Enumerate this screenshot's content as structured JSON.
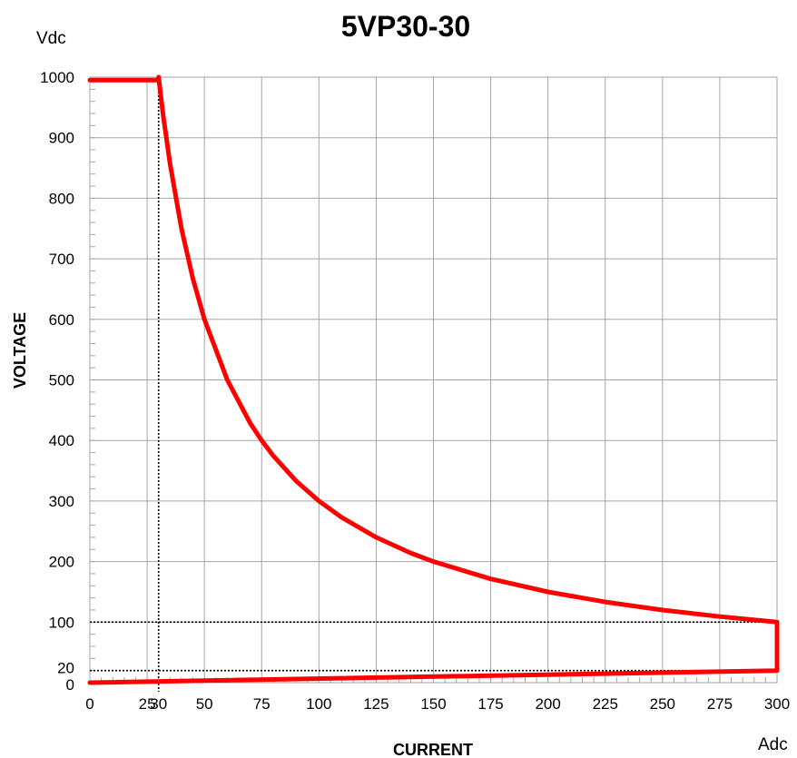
{
  "chart_data": {
    "type": "line",
    "title": "5VP30-30",
    "xlabel": "CURRENT",
    "ylabel": "VOLTAGE",
    "x_unit": "Adc",
    "y_unit": "Vdc",
    "xlim": [
      0,
      300
    ],
    "ylim": [
      0,
      1000
    ],
    "x_ticks": [
      0,
      25,
      30,
      50,
      75,
      100,
      125,
      150,
      175,
      200,
      225,
      250,
      275,
      300
    ],
    "y_ticks": [
      0,
      20,
      100,
      200,
      300,
      400,
      500,
      600,
      700,
      800,
      900,
      1000
    ],
    "grid": true,
    "series": [
      {
        "color": "#ff0000",
        "points": [
          [
            0,
            995
          ],
          [
            30,
            995
          ],
          [
            30,
            1000
          ],
          [
            32,
            937.5
          ],
          [
            35,
            857.1
          ],
          [
            40,
            750
          ],
          [
            45,
            666.7
          ],
          [
            50,
            600
          ],
          [
            60,
            500
          ],
          [
            70,
            428.6
          ],
          [
            75,
            400
          ],
          [
            80,
            375
          ],
          [
            90,
            333.3
          ],
          [
            100,
            300
          ],
          [
            110,
            272.7
          ],
          [
            125,
            240
          ],
          [
            140,
            214.3
          ],
          [
            150,
            200
          ],
          [
            175,
            171.4
          ],
          [
            200,
            150
          ],
          [
            225,
            133.3
          ],
          [
            250,
            120
          ],
          [
            275,
            109.1
          ],
          [
            300,
            100
          ],
          [
            300,
            20
          ],
          [
            0,
            0
          ]
        ]
      }
    ],
    "reference_lines": [
      {
        "axis": "x",
        "value": 30,
        "color": "#000000",
        "style": "dotted"
      },
      {
        "axis": "y",
        "value": 100,
        "color": "#000000",
        "style": "dotted"
      },
      {
        "axis": "y",
        "value": 20,
        "color": "#000000",
        "style": "dotted"
      }
    ]
  }
}
